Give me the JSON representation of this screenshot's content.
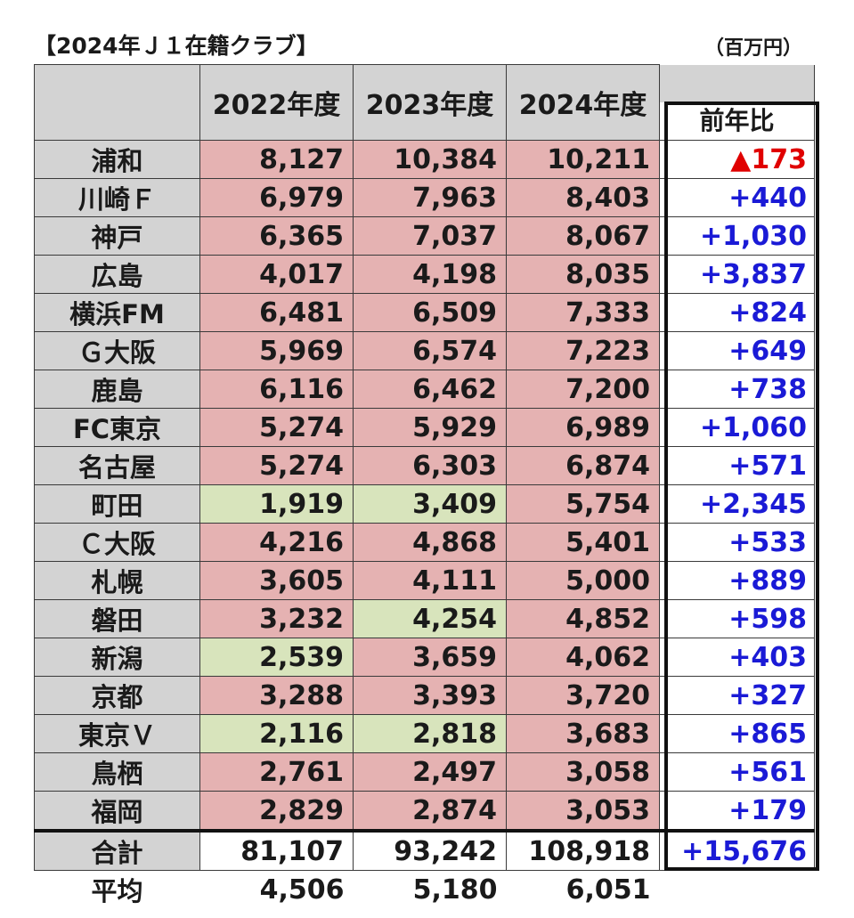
{
  "title": "【2024年Ｊ１在籍クラブ】",
  "unit": "（百万円）",
  "headers": [
    "2022年度",
    "2023年度",
    "2024年度",
    "前年比"
  ],
  "rows": [
    {
      "club": "浦和",
      "v": [
        "8,127",
        "10,384",
        "10,211"
      ],
      "c": [
        "red",
        "red",
        "red"
      ],
      "yoy": "▲173",
      "neg": true
    },
    {
      "club": "川崎Ｆ",
      "v": [
        "6,979",
        "7,963",
        "8,403"
      ],
      "c": [
        "red",
        "red",
        "red"
      ],
      "yoy": "+440"
    },
    {
      "club": "神戸",
      "v": [
        "6,365",
        "7,037",
        "8,067"
      ],
      "c": [
        "red",
        "red",
        "red"
      ],
      "yoy": "+1,030"
    },
    {
      "club": "広島",
      "v": [
        "4,017",
        "4,198",
        "8,035"
      ],
      "c": [
        "red",
        "red",
        "red"
      ],
      "yoy": "+3,837"
    },
    {
      "club": "横浜FM",
      "v": [
        "6,481",
        "6,509",
        "7,333"
      ],
      "c": [
        "red",
        "red",
        "red"
      ],
      "yoy": "+824"
    },
    {
      "club": "Ｇ大阪",
      "v": [
        "5,969",
        "6,574",
        "7,223"
      ],
      "c": [
        "red",
        "red",
        "red"
      ],
      "yoy": "+649"
    },
    {
      "club": "鹿島",
      "v": [
        "6,116",
        "6,462",
        "7,200"
      ],
      "c": [
        "red",
        "red",
        "red"
      ],
      "yoy": "+738"
    },
    {
      "club": "FC東京",
      "v": [
        "5,274",
        "5,929",
        "6,989"
      ],
      "c": [
        "red",
        "red",
        "red"
      ],
      "yoy": "+1,060"
    },
    {
      "club": "名古屋",
      "v": [
        "5,274",
        "6,303",
        "6,874"
      ],
      "c": [
        "red",
        "red",
        "red"
      ],
      "yoy": "+571"
    },
    {
      "club": "町田",
      "v": [
        "1,919",
        "3,409",
        "5,754"
      ],
      "c": [
        "green",
        "green",
        "red"
      ],
      "yoy": "+2,345"
    },
    {
      "club": "Ｃ大阪",
      "v": [
        "4,216",
        "4,868",
        "5,401"
      ],
      "c": [
        "red",
        "red",
        "red"
      ],
      "yoy": "+533"
    },
    {
      "club": "札幌",
      "v": [
        "3,605",
        "4,111",
        "5,000"
      ],
      "c": [
        "red",
        "red",
        "red"
      ],
      "yoy": "+889"
    },
    {
      "club": "磐田",
      "v": [
        "3,232",
        "4,254",
        "4,852"
      ],
      "c": [
        "red",
        "green",
        "red"
      ],
      "yoy": "+598"
    },
    {
      "club": "新潟",
      "v": [
        "2,539",
        "3,659",
        "4,062"
      ],
      "c": [
        "green",
        "red",
        "red"
      ],
      "yoy": "+403"
    },
    {
      "club": "京都",
      "v": [
        "3,288",
        "3,393",
        "3,720"
      ],
      "c": [
        "red",
        "red",
        "red"
      ],
      "yoy": "+327"
    },
    {
      "club": "東京Ｖ",
      "v": [
        "2,116",
        "2,818",
        "3,683"
      ],
      "c": [
        "green",
        "green",
        "red"
      ],
      "yoy": "+865"
    },
    {
      "club": "鳥栖",
      "v": [
        "2,761",
        "2,497",
        "3,058"
      ],
      "c": [
        "red",
        "red",
        "red"
      ],
      "yoy": "+561"
    },
    {
      "club": "福岡",
      "v": [
        "2,829",
        "2,874",
        "3,053"
      ],
      "c": [
        "red",
        "red",
        "red"
      ],
      "yoy": "+179"
    }
  ],
  "total": {
    "club": "合計",
    "v": [
      "81,107",
      "93,242",
      "108,918"
    ],
    "yoy": "+15,676"
  },
  "average": {
    "club": "平均",
    "v": [
      "4,506",
      "5,180",
      "6,051"
    ]
  },
  "colors": {
    "red_cell": "#e5b2b2",
    "green_cell": "#d8e4bc",
    "header": "#d3d3d3",
    "positive": "#1a1ad6",
    "negative": "#e00000"
  }
}
